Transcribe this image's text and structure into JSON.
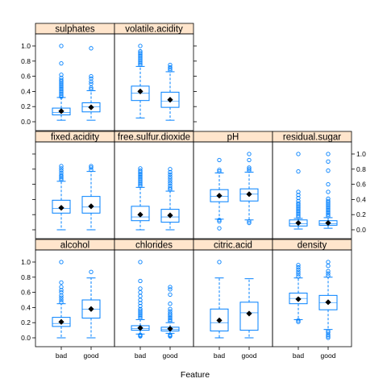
{
  "chart_data": {
    "type": "box",
    "xlabel": "Feature",
    "ylabel": "",
    "categories": [
      "bad",
      "good"
    ],
    "ylim": [
      0.0,
      1.0
    ],
    "yticks": [
      "0.0",
      "0.2",
      "0.4",
      "0.6",
      "0.8",
      "1.0"
    ],
    "colors": {
      "box": "#0080ff",
      "outlier": "#0080ff",
      "mean_marker": "#000000",
      "strip_fill": "#ffe5cc",
      "panel_border": "#000000"
    },
    "panels": [
      {
        "name": "sulphates",
        "row": 0,
        "col": 0,
        "boxes": [
          {
            "category": "bad",
            "whisker_low": 0.02,
            "q1": 0.09,
            "median": 0.12,
            "q3": 0.18,
            "whisker_high": 0.32,
            "mean": 0.14,
            "outliers": [
              0.33,
              0.35,
              0.37,
              0.39,
              0.41,
              0.43,
              0.45,
              0.47,
              0.49,
              0.51,
              0.53,
              0.55,
              0.58,
              0.62,
              0.77,
              1.0
            ]
          },
          {
            "category": "good",
            "whisker_low": 0.02,
            "q1": 0.13,
            "median": 0.2,
            "q3": 0.25,
            "whisker_high": 0.41,
            "mean": 0.19,
            "outliers": [
              0.43,
              0.45,
              0.5,
              0.53,
              0.57,
              0.6,
              0.97
            ]
          }
        ]
      },
      {
        "name": "volatile.acidity",
        "row": 0,
        "col": 1,
        "boxes": [
          {
            "category": "bad",
            "whisker_low": 0.05,
            "q1": 0.28,
            "median": 0.38,
            "q3": 0.47,
            "whisker_high": 0.73,
            "mean": 0.4,
            "outliers": [
              0.75,
              0.77,
              0.79,
              0.81,
              0.83,
              0.85,
              0.87,
              0.89,
              0.91,
              0.93,
              1.0
            ]
          },
          {
            "category": "good",
            "whisker_low": 0.02,
            "q1": 0.19,
            "median": 0.27,
            "q3": 0.39,
            "whisker_high": 0.66,
            "mean": 0.29,
            "outliers": [
              0.68,
              0.7,
              0.72,
              0.75
            ]
          }
        ]
      },
      {
        "name": "fixed.acidity",
        "row": 1,
        "col": 0,
        "boxes": [
          {
            "category": "bad",
            "whisker_low": 0.0,
            "q1": 0.22,
            "median": 0.28,
            "q3": 0.39,
            "whisker_high": 0.64,
            "mean": 0.29,
            "outliers": [
              0.66,
              0.68,
              0.7,
              0.72,
              0.75,
              0.78,
              0.81,
              0.84
            ]
          },
          {
            "category": "good",
            "whisker_low": 0.0,
            "q1": 0.22,
            "median": 0.3,
            "q3": 0.44,
            "whisker_high": 0.77,
            "mean": 0.31,
            "outliers": [
              0.79,
              0.82,
              0.84
            ]
          }
        ]
      },
      {
        "name": "free.sulfur.dioxide",
        "row": 1,
        "col": 1,
        "boxes": [
          {
            "category": "bad",
            "whisker_low": 0.0,
            "q1": 0.12,
            "median": 0.17,
            "q3": 0.31,
            "whisker_high": 0.56,
            "mean": 0.2,
            "outliers": [
              0.58,
              0.6,
              0.62,
              0.64,
              0.66,
              0.68,
              0.7,
              0.72,
              0.74,
              0.76,
              0.78,
              0.81
            ]
          },
          {
            "category": "good",
            "whisker_low": 0.0,
            "q1": 0.1,
            "median": 0.17,
            "q3": 0.27,
            "whisker_high": 0.51,
            "mean": 0.19,
            "outliers": [
              0.53,
              0.55,
              0.58,
              0.61,
              0.64,
              0.67,
              0.7,
              0.73,
              0.76,
              0.8
            ]
          }
        ]
      },
      {
        "name": "pH",
        "row": 1,
        "col": 2,
        "boxes": [
          {
            "category": "bad",
            "whisker_low": 0.14,
            "q1": 0.37,
            "median": 0.44,
            "q3": 0.53,
            "whisker_high": 0.75,
            "mean": 0.45,
            "outliers": [
              0.02,
              0.11,
              0.13,
              0.77,
              0.79,
              0.92
            ]
          },
          {
            "category": "good",
            "whisker_low": 0.13,
            "q1": 0.38,
            "median": 0.47,
            "q3": 0.54,
            "whisker_high": 0.76,
            "mean": 0.47,
            "outliers": [
              0.09,
              0.11,
              0.78,
              0.8,
              0.82,
              0.92,
              1.0
            ]
          }
        ]
      },
      {
        "name": "residual.sugar",
        "row": 1,
        "col": 3,
        "boxes": [
          {
            "category": "bad",
            "whisker_low": 0.01,
            "q1": 0.05,
            "median": 0.08,
            "q3": 0.13,
            "whisker_high": 0.15,
            "mean": 0.09,
            "outliers": [
              0.17,
              0.19,
              0.21,
              0.23,
              0.25,
              0.27,
              0.29,
              0.31,
              0.33,
              0.35,
              0.38,
              0.42,
              0.46,
              0.5,
              0.77,
              1.0
            ]
          },
          {
            "category": "good",
            "whisker_low": 0.02,
            "q1": 0.06,
            "median": 0.08,
            "q3": 0.12,
            "whisker_high": 0.16,
            "mean": 0.09,
            "outliers": [
              0.18,
              0.2,
              0.22,
              0.24,
              0.26,
              0.28,
              0.3,
              0.32,
              0.34,
              0.36,
              0.38,
              0.41,
              0.5,
              0.6,
              0.78,
              0.9,
              1.0
            ]
          }
        ]
      },
      {
        "name": "alcohol",
        "row": 2,
        "col": 0,
        "boxes": [
          {
            "category": "bad",
            "whisker_low": 0.0,
            "q1": 0.15,
            "median": 0.19,
            "q3": 0.27,
            "whisker_high": 0.45,
            "mean": 0.21,
            "outliers": [
              0.47,
              0.5,
              0.53,
              0.56,
              0.6,
              0.63,
              0.67,
              0.73,
              1.0
            ]
          },
          {
            "category": "good",
            "whisker_low": 0.0,
            "q1": 0.26,
            "median": 0.38,
            "q3": 0.5,
            "whisker_high": 0.79,
            "mean": 0.38,
            "outliers": [
              0.87
            ]
          }
        ]
      },
      {
        "name": "chlorides",
        "row": 2,
        "col": 1,
        "boxes": [
          {
            "category": "bad",
            "whisker_low": 0.05,
            "q1": 0.1,
            "median": 0.12,
            "q3": 0.16,
            "whisker_high": 0.24,
            "mean": 0.13,
            "outliers": [
              0.02,
              0.03,
              0.04,
              0.26,
              0.28,
              0.3,
              0.32,
              0.34,
              0.36,
              0.38,
              0.42,
              0.46,
              0.5,
              0.55,
              0.6,
              0.65,
              0.75,
              1.0
            ]
          },
          {
            "category": "good",
            "whisker_low": 0.06,
            "q1": 0.09,
            "median": 0.11,
            "q3": 0.14,
            "whisker_high": 0.2,
            "mean": 0.12,
            "outliers": [
              0.02,
              0.03,
              0.04,
              0.22,
              0.24,
              0.26,
              0.28,
              0.3,
              0.32,
              0.35,
              0.38,
              0.45,
              0.57,
              0.64,
              0.67
            ]
          }
        ]
      },
      {
        "name": "citric.acid",
        "row": 2,
        "col": 2,
        "boxes": [
          {
            "category": "bad",
            "whisker_low": 0.0,
            "q1": 0.09,
            "median": 0.2,
            "q3": 0.38,
            "whisker_high": 0.79,
            "mean": 0.23,
            "outliers": [
              1.0
            ]
          },
          {
            "category": "good",
            "whisker_low": 0.0,
            "q1": 0.1,
            "median": 0.33,
            "q3": 0.47,
            "whisker_high": 0.78,
            "mean": 0.32,
            "outliers": []
          }
        ]
      },
      {
        "name": "density",
        "row": 2,
        "col": 3,
        "boxes": [
          {
            "category": "bad",
            "whisker_low": 0.24,
            "q1": 0.45,
            "median": 0.52,
            "q3": 0.59,
            "whisker_high": 0.79,
            "mean": 0.51,
            "outliers": [
              0.21,
              0.23,
              0.81,
              0.84,
              0.87,
              0.9,
              0.93,
              0.96
            ]
          },
          {
            "category": "good",
            "whisker_low": 0.11,
            "q1": 0.37,
            "median": 0.46,
            "q3": 0.56,
            "whisker_high": 0.8,
            "mean": 0.47,
            "outliers": [
              0.0,
              0.02,
              0.04,
              0.07,
              0.09,
              0.82,
              0.85,
              0.88,
              0.95,
              1.0
            ]
          }
        ]
      }
    ]
  }
}
